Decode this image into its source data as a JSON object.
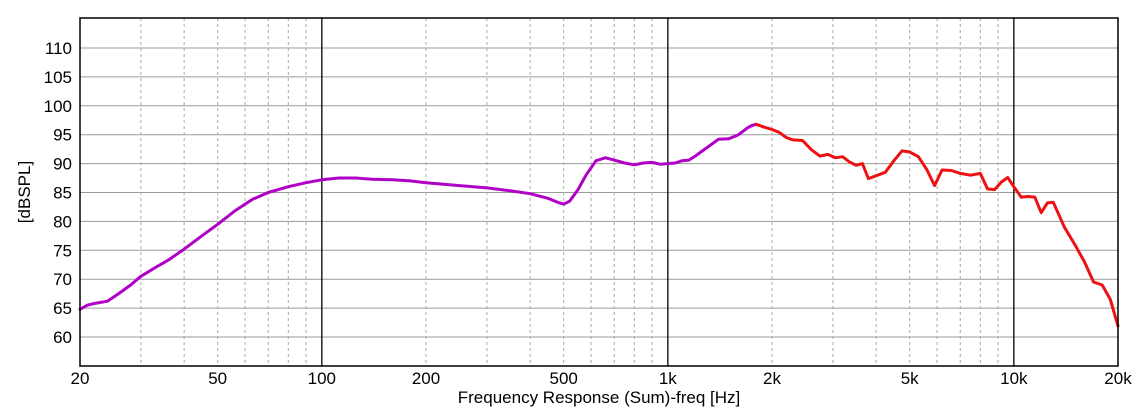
{
  "chart_data": {
    "type": "line",
    "title": "",
    "xlabel": "Frequency Response (Sum)-freq [Hz]",
    "ylabel": "[dBSPL]",
    "xscale": "log",
    "xlim": [
      20,
      20000
    ],
    "ylim": [
      55,
      115
    ],
    "grid": true,
    "legend": "none",
    "x_ticks": [
      {
        "value": 20,
        "label": "20"
      },
      {
        "value": 50,
        "label": "50"
      },
      {
        "value": 100,
        "label": "100"
      },
      {
        "value": 200,
        "label": "200"
      },
      {
        "value": 500,
        "label": "500"
      },
      {
        "value": 1000,
        "label": "1k"
      },
      {
        "value": 2000,
        "label": "2k"
      },
      {
        "value": 5000,
        "label": "5k"
      },
      {
        "value": 10000,
        "label": "10k"
      },
      {
        "value": 20000,
        "label": "20k"
      }
    ],
    "y_ticks": [
      60,
      65,
      70,
      75,
      80,
      85,
      90,
      95,
      100,
      105,
      110
    ],
    "series": [
      {
        "color": "#b000c8",
        "x": [
          20,
          21,
          22,
          24,
          26,
          28,
          30,
          33,
          36,
          40,
          45,
          50,
          56,
          63,
          70,
          80,
          90,
          100,
          112,
          125,
          140,
          160,
          180,
          200,
          250,
          300,
          350,
          400,
          450,
          480,
          500,
          520,
          550,
          580,
          620,
          660,
          700,
          750,
          800,
          850,
          900,
          950,
          1000,
          1050,
          1100,
          1150,
          1200,
          1300,
          1400,
          1500,
          1600,
          1700,
          1750,
          1800
        ],
        "y": [
          64.8,
          65.5,
          65.8,
          66.2,
          67.6,
          69.0,
          70.5,
          72.0,
          73.3,
          75.2,
          77.5,
          79.5,
          81.8,
          83.8,
          85.0,
          86.0,
          86.7,
          87.2,
          87.5,
          87.5,
          87.3,
          87.2,
          87.0,
          86.7,
          86.2,
          85.8,
          85.3,
          84.8,
          84.0,
          83.3,
          83.0,
          83.5,
          85.5,
          88.0,
          90.5,
          91.0,
          90.6,
          90.1,
          89.8,
          90.1,
          90.2,
          89.9,
          90.0,
          90.1,
          90.5,
          90.6,
          91.3,
          92.8,
          94.2,
          94.3,
          95.0,
          96.2,
          96.6,
          96.8
        ]
      },
      {
        "color": "#ee1111",
        "x": [
          1800,
          1900,
          2000,
          2100,
          2200,
          2300,
          2450,
          2600,
          2750,
          2900,
          3050,
          3200,
          3350,
          3500,
          3650,
          3800,
          4000,
          4250,
          4500,
          4750,
          5000,
          5300,
          5600,
          5900,
          6200,
          6600,
          7000,
          7500,
          8000,
          8400,
          8800,
          9200,
          9600,
          10000,
          10500,
          11000,
          11500,
          12000,
          12500,
          13000,
          14000,
          15000,
          16000,
          17000,
          18000,
          19000,
          20000
        ],
        "y": [
          96.8,
          96.3,
          95.9,
          95.4,
          94.5,
          94.1,
          94.0,
          92.4,
          91.3,
          91.6,
          91.0,
          91.2,
          90.3,
          89.7,
          90.0,
          87.4,
          87.9,
          88.5,
          90.5,
          92.2,
          92.0,
          91.2,
          89.0,
          86.2,
          88.9,
          88.8,
          88.3,
          88.0,
          88.3,
          85.6,
          85.5,
          86.8,
          87.6,
          86.0,
          84.2,
          84.3,
          84.2,
          81.5,
          83.2,
          83.3,
          79.0,
          76.0,
          73.0,
          69.5,
          69.0,
          66.5,
          61.9
        ]
      }
    ]
  }
}
